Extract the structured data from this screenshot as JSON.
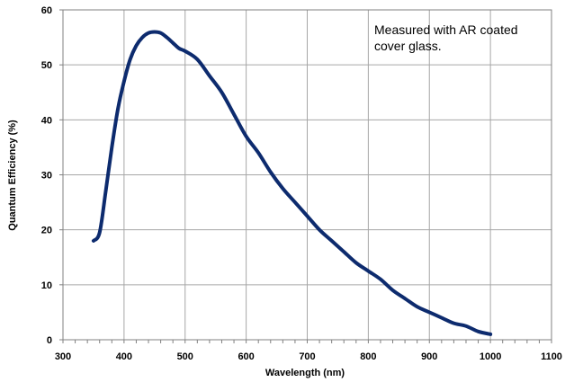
{
  "chart_data": {
    "type": "line",
    "title": "",
    "xlabel": "Wavelength (nm)",
    "ylabel": "Quantum Efficiency (%)",
    "xlim": [
      300,
      1100
    ],
    "ylim": [
      0,
      60
    ],
    "xticks": [
      300,
      400,
      500,
      600,
      700,
      800,
      900,
      1000,
      1100
    ],
    "yticks": [
      0,
      10,
      20,
      30,
      40,
      50,
      60
    ],
    "grid": true,
    "legend": "none",
    "annotation": [
      "Measured with AR coated",
      "cover glass."
    ],
    "series": [
      {
        "color": "#0d2b6e",
        "x": [
          350,
          360,
          370,
          380,
          390,
          400,
          410,
          420,
          430,
          440,
          450,
          460,
          470,
          480,
          490,
          500,
          520,
          540,
          560,
          580,
          600,
          620,
          640,
          660,
          680,
          700,
          720,
          740,
          760,
          780,
          800,
          820,
          840,
          860,
          880,
          900,
          920,
          940,
          960,
          980,
          1000
        ],
        "y": [
          18,
          19.5,
          27,
          35,
          42,
          47,
          51,
          53.5,
          55,
          55.8,
          56,
          55.8,
          55,
          54,
          53,
          52.5,
          51,
          48,
          45,
          41,
          37,
          34,
          30.5,
          27.5,
          25,
          22.5,
          20,
          18,
          16,
          14,
          12.5,
          11,
          9,
          7.5,
          6,
          5,
          4,
          3,
          2.5,
          1.5,
          1
        ]
      }
    ]
  }
}
